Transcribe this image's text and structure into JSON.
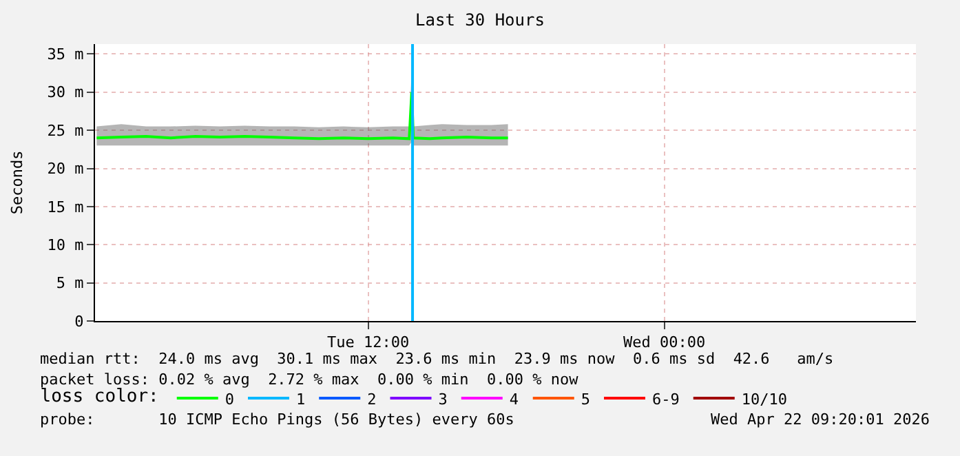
{
  "chart_data": {
    "type": "line",
    "title": "Last 30 Hours",
    "ylabel": "Seconds",
    "x": [
      "2026-04-21T01:00",
      "2026-04-21T02:00",
      "2026-04-21T03:00",
      "2026-04-21T04:00",
      "2026-04-21T05:00",
      "2026-04-21T06:00",
      "2026-04-21T07:00",
      "2026-04-21T08:00",
      "2026-04-21T09:00",
      "2026-04-21T10:00",
      "2026-04-21T11:00",
      "2026-04-21T12:00",
      "2026-04-21T13:00",
      "2026-04-21T13:40",
      "2026-04-21T13:46",
      "2026-04-21T13:50",
      "2026-04-21T14:30",
      "2026-04-21T15:00",
      "2026-04-21T16:00",
      "2026-04-21T17:00",
      "2026-04-21T17:40"
    ],
    "series": [
      {
        "name": "0",
        "color": "#00ff00",
        "values": [
          24.0,
          24.1,
          24.2,
          24.0,
          24.2,
          24.1,
          24.2,
          24.1,
          24.0,
          23.9,
          24.0,
          23.9,
          24.0,
          23.9,
          30.0,
          24.0,
          23.9,
          24.0,
          24.1,
          24.0,
          24.0
        ],
        "lower": [
          23.0,
          23.0,
          23.0,
          23.0,
          23.0,
          23.0,
          23.0,
          23.0,
          23.0,
          23.0,
          23.0,
          23.0,
          23.0,
          23.0,
          23.5,
          23.0,
          23.0,
          23.0,
          23.0,
          23.0,
          23.0
        ],
        "upper": [
          25.5,
          25.8,
          25.5,
          25.5,
          25.6,
          25.5,
          25.6,
          25.5,
          25.5,
          25.4,
          25.5,
          25.4,
          25.5,
          25.5,
          33.0,
          25.5,
          25.7,
          25.8,
          25.7,
          25.7,
          25.8
        ]
      },
      {
        "name": "1",
        "color": "#00b8ff",
        "values": [
          null,
          null,
          null,
          null,
          null,
          null,
          null,
          null,
          null,
          null,
          null,
          null,
          null,
          null,
          null,
          null,
          null,
          null,
          null,
          null,
          null
        ]
      },
      {
        "name": "2",
        "color": "#0059ff",
        "values": [
          null,
          null,
          null,
          null,
          null,
          null,
          null,
          null,
          null,
          null,
          null,
          null,
          null,
          null,
          null,
          null,
          null,
          null,
          null,
          null,
          null
        ]
      },
      {
        "name": "3",
        "color": "#7e00ff",
        "values": [
          null,
          null,
          null,
          null,
          null,
          null,
          null,
          null,
          null,
          null,
          null,
          null,
          null,
          null,
          null,
          null,
          null,
          null,
          null,
          null,
          null
        ]
      },
      {
        "name": "4",
        "color": "#ff00ff",
        "values": [
          null,
          null,
          null,
          null,
          null,
          null,
          null,
          null,
          null,
          null,
          null,
          null,
          null,
          null,
          null,
          null,
          null,
          null,
          null,
          null,
          null
        ]
      },
      {
        "name": "5",
        "color": "#ff5500",
        "values": [
          null,
          null,
          null,
          null,
          null,
          null,
          null,
          null,
          null,
          null,
          null,
          null,
          null,
          null,
          null,
          null,
          null,
          null,
          null,
          null,
          null
        ]
      },
      {
        "name": "6-9",
        "color": "#ff0000",
        "values": [
          null,
          null,
          null,
          null,
          null,
          null,
          null,
          null,
          null,
          null,
          null,
          null,
          null,
          null,
          null,
          null,
          null,
          null,
          null,
          null,
          null
        ]
      },
      {
        "name": "10/10",
        "color": "#a10000",
        "values": [
          null,
          null,
          null,
          null,
          null,
          null,
          null,
          null,
          null,
          null,
          null,
          null,
          null,
          null,
          null,
          null,
          null,
          null,
          null,
          null,
          null
        ]
      }
    ],
    "legend_title": "loss color:",
    "legend": "bottom",
    "xlim": [
      "2026-04-21T00:56",
      "2026-04-22T10:12"
    ],
    "xticks": [
      {
        "value": "2026-04-21T12:00",
        "label": "Tue 12:00"
      },
      {
        "value": "2026-04-22T00:00",
        "label": "Wed 00:00"
      }
    ],
    "ylim": [
      0,
      36.3
    ],
    "yticks": [
      0,
      {
        "value": 5,
        "label": "5 m"
      },
      {
        "value": 10,
        "label": "10 m"
      },
      {
        "value": 15,
        "label": "15 m"
      },
      {
        "value": 20,
        "label": "20 m"
      },
      {
        "value": 25,
        "label": "25 m"
      },
      {
        "value": 30,
        "label": "30 m"
      },
      {
        "value": 35,
        "label": "35 m"
      }
    ],
    "grid": true,
    "ref_lines": [
      {
        "axis": "x",
        "value": "2026-04-21T13:48",
        "color": "#00b8ff"
      }
    ],
    "annotations": [
      "median rtt:  24.0 ms avg  30.1 ms max  23.6 ms min  23.9 ms now  0.6 ms sd  42.6   am/s",
      "packet loss: 0.02 % avg  2.72 % max  0.00 % min  0.00 % now",
      "probe:       10 ICMP Echo Pings (56 Bytes) every 60s",
      "Wed Apr 22 09:20:01 2026"
    ]
  }
}
